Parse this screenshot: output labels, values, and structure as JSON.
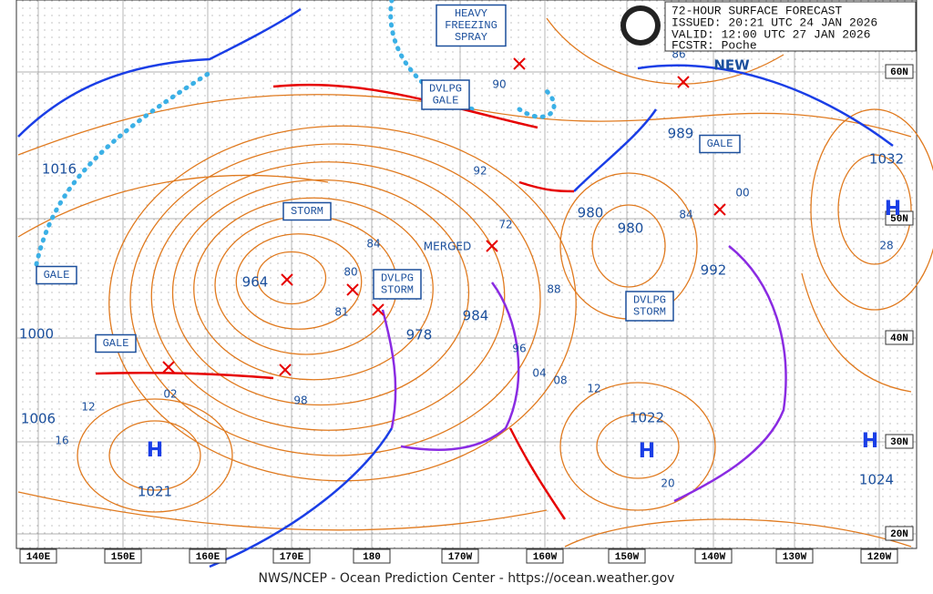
{
  "header": {
    "title": "72-HOUR SURFACE FORECAST",
    "issued": "ISSUED:  20:21 UTC 24 JAN 2026",
    "valid": "VALID:   12:00 UTC 27 JAN 2026",
    "forecaster": "FCSTR:   Poche"
  },
  "footer": "NWS/NCEP - Ocean Prediction Center - https://ocean.weather.gov",
  "longitude_labels": [
    "140E",
    "150E",
    "160E",
    "170E",
    "180",
    "170W",
    "160W",
    "150W",
    "140W",
    "130W",
    "120W"
  ],
  "latitude_labels": [
    "60N",
    "50N",
    "40N",
    "30N",
    "20N"
  ],
  "warnings": [
    {
      "lines": [
        "HEAVY",
        "FREEZING",
        "SPRAY"
      ]
    },
    {
      "lines": [
        "DVLPG",
        "GALE"
      ]
    },
    {
      "lines": [
        "STORM"
      ]
    },
    {
      "lines": [
        "GALE"
      ]
    },
    {
      "lines": [
        "GALE"
      ]
    },
    {
      "lines": [
        "DVLPG",
        "STORM"
      ]
    },
    {
      "lines": [
        "DVLPG",
        "STORM"
      ]
    },
    {
      "lines": [
        "GALE"
      ]
    }
  ],
  "notes": [
    "NEW",
    "MERGED"
  ],
  "pressure_labels": [
    "1016",
    "1000",
    "1006",
    "16",
    "12",
    "1021",
    "02",
    "98",
    "964",
    "80",
    "81",
    "978",
    "984",
    "72",
    "84",
    "92",
    "90",
    "88",
    "96",
    "04",
    "08",
    "12",
    "980",
    "980",
    "84",
    "989",
    "00",
    "992",
    "86",
    "1032",
    "28",
    "1022",
    "1024",
    "20"
  ],
  "high_labels": [
    "H",
    "H",
    "H",
    "H"
  ]
}
